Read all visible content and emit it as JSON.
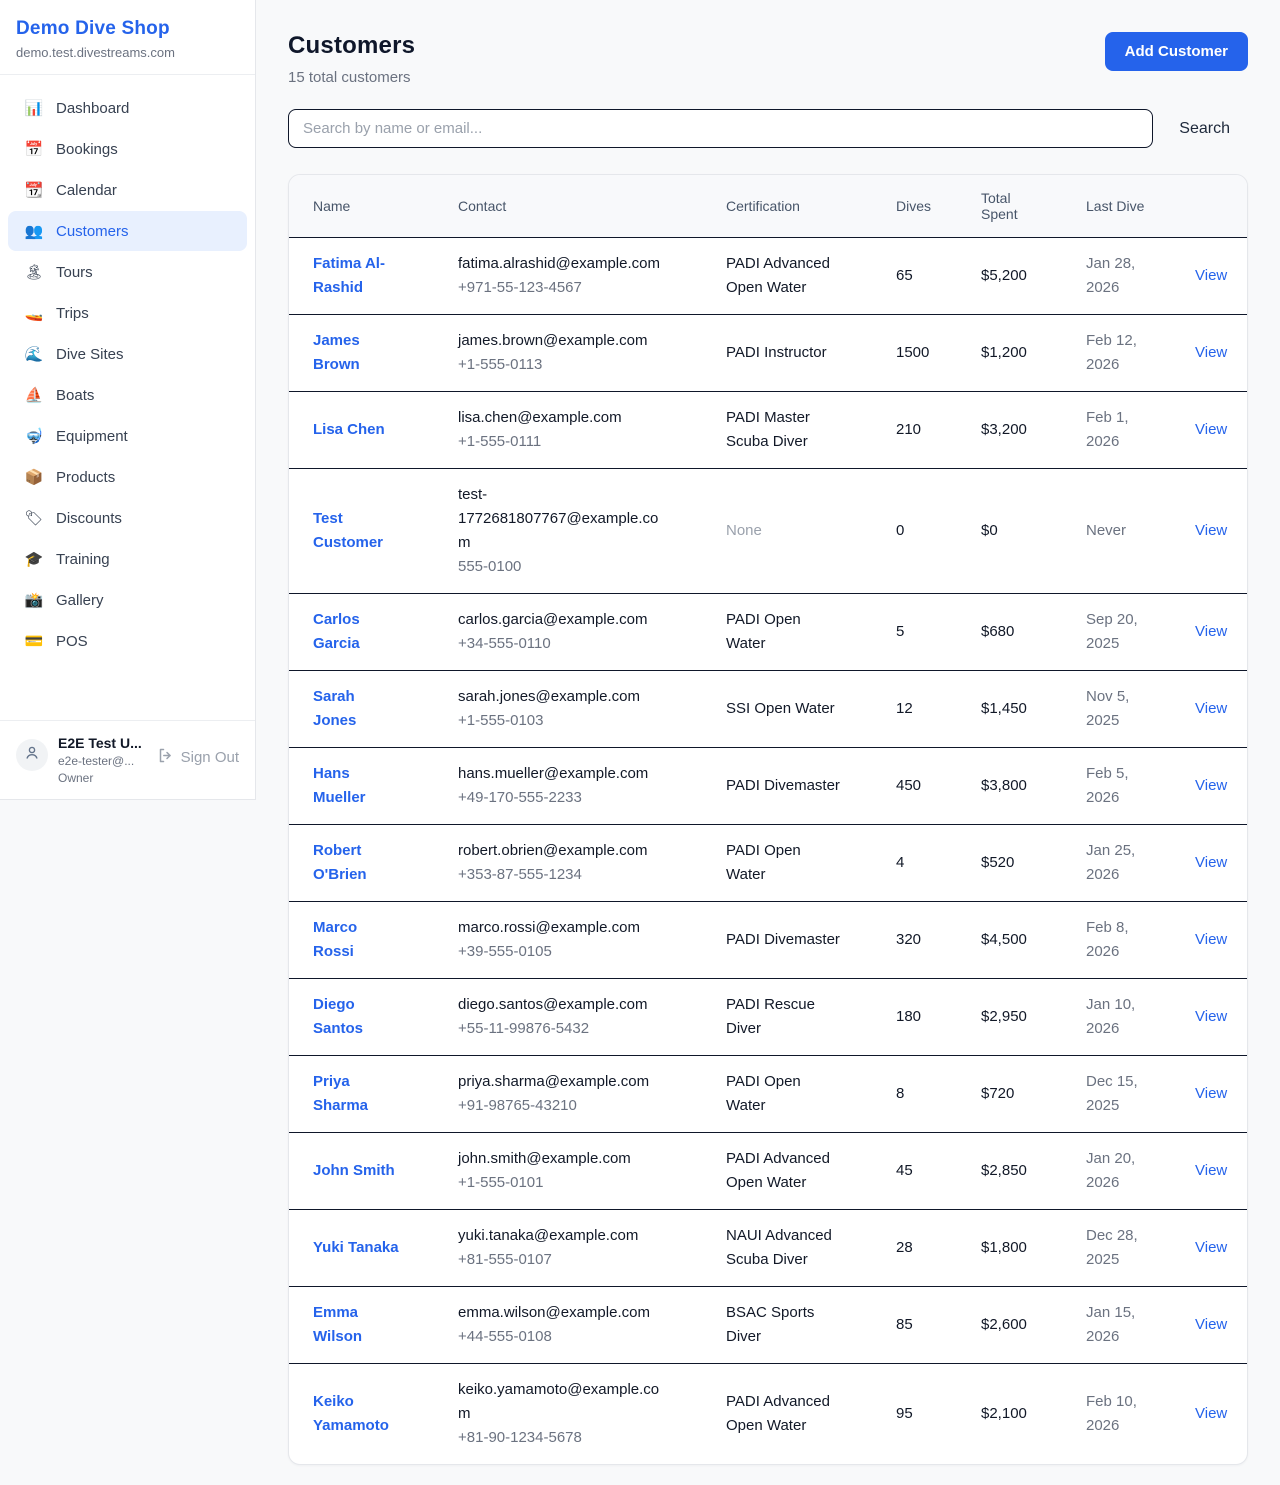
{
  "sidebar": {
    "shop_name": "Demo Dive Shop",
    "domain": "demo.test.divestreams.com",
    "nav": [
      {
        "icon": "📊",
        "icon_name": "dashboard-chart-icon",
        "label": "Dashboard",
        "active": false
      },
      {
        "icon": "📅",
        "icon_name": "bookings-calendar-icon",
        "label": "Bookings",
        "active": false
      },
      {
        "icon": "📆",
        "icon_name": "calendar-icon",
        "label": "Calendar",
        "active": false
      },
      {
        "icon": "👥",
        "icon_name": "customers-people-icon",
        "label": "Customers",
        "active": true
      },
      {
        "icon": "🏝",
        "icon_name": "tours-island-icon",
        "label": "Tours",
        "active": false
      },
      {
        "icon": "🚤",
        "icon_name": "trips-speedboat-icon",
        "label": "Trips",
        "active": false
      },
      {
        "icon": "🌊",
        "icon_name": "dive-sites-wave-icon",
        "label": "Dive Sites",
        "active": false
      },
      {
        "icon": "⛵",
        "icon_name": "boats-sailboat-icon",
        "label": "Boats",
        "active": false
      },
      {
        "icon": "🤿",
        "icon_name": "equipment-mask-icon",
        "label": "Equipment",
        "active": false
      },
      {
        "icon": "📦",
        "icon_name": "products-package-icon",
        "label": "Products",
        "active": false
      },
      {
        "icon": "🏷",
        "icon_name": "discounts-tag-icon",
        "label": "Discounts",
        "active": false
      },
      {
        "icon": "🎓",
        "icon_name": "training-grad-cap-icon",
        "label": "Training",
        "active": false
      },
      {
        "icon": "📸",
        "icon_name": "gallery-camera-icon",
        "label": "Gallery",
        "active": false
      },
      {
        "icon": "💳",
        "icon_name": "pos-credit-card-icon",
        "label": "POS",
        "active": false
      }
    ],
    "user": {
      "name": "E2E Test U...",
      "email": "e2e-tester@...",
      "role": "Owner",
      "sign_out_label": "Sign Out"
    }
  },
  "header": {
    "title": "Customers",
    "subtitle": "15 total customers",
    "add_button_label": "Add Customer"
  },
  "search": {
    "placeholder": "Search by name or email...",
    "button_label": "Search"
  },
  "table": {
    "columns": [
      "Name",
      "Contact",
      "Certification",
      "Dives",
      "Total Spent",
      "Last Dive"
    ],
    "view_label": "View",
    "rows": [
      {
        "name": "Fatima Al-Rashid",
        "email": "fatima.alrashid@example.com",
        "phone": "+971-55-123-4567",
        "certification": "PADI Advanced Open Water",
        "dives": "65",
        "total_spent": "$5,200",
        "last_dive": "Jan 28, 2026"
      },
      {
        "name": "James Brown",
        "email": "james.brown@example.com",
        "phone": "+1-555-0113",
        "certification": "PADI Instructor",
        "dives": "1500",
        "total_spent": "$1,200",
        "last_dive": "Feb 12, 2026"
      },
      {
        "name": "Lisa Chen",
        "email": "lisa.chen@example.com",
        "phone": "+1-555-0111",
        "certification": "PADI Master Scuba Diver",
        "dives": "210",
        "total_spent": "$3,200",
        "last_dive": "Feb 1, 2026"
      },
      {
        "name": "Test Customer",
        "email": "test-1772681807767@example.com",
        "phone": "555-0100",
        "certification": "None",
        "dives": "0",
        "total_spent": "$0",
        "last_dive": "Never"
      },
      {
        "name": "Carlos Garcia",
        "email": "carlos.garcia@example.com",
        "phone": "+34-555-0110",
        "certification": "PADI Open Water",
        "dives": "5",
        "total_spent": "$680",
        "last_dive": "Sep 20, 2025"
      },
      {
        "name": "Sarah Jones",
        "email": "sarah.jones@example.com",
        "phone": "+1-555-0103",
        "certification": "SSI Open Water",
        "dives": "12",
        "total_spent": "$1,450",
        "last_dive": "Nov 5, 2025"
      },
      {
        "name": "Hans Mueller",
        "email": "hans.mueller@example.com",
        "phone": "+49-170-555-2233",
        "certification": "PADI Divemaster",
        "dives": "450",
        "total_spent": "$3,800",
        "last_dive": "Feb 5, 2026"
      },
      {
        "name": "Robert O'Brien",
        "email": "robert.obrien@example.com",
        "phone": "+353-87-555-1234",
        "certification": "PADI Open Water",
        "dives": "4",
        "total_spent": "$520",
        "last_dive": "Jan 25, 2026"
      },
      {
        "name": "Marco Rossi",
        "email": "marco.rossi@example.com",
        "phone": "+39-555-0105",
        "certification": "PADI Divemaster",
        "dives": "320",
        "total_spent": "$4,500",
        "last_dive": "Feb 8, 2026"
      },
      {
        "name": "Diego Santos",
        "email": "diego.santos@example.com",
        "phone": "+55-11-99876-5432",
        "certification": "PADI Rescue Diver",
        "dives": "180",
        "total_spent": "$2,950",
        "last_dive": "Jan 10, 2026"
      },
      {
        "name": "Priya Sharma",
        "email": "priya.sharma@example.com",
        "phone": "+91-98765-43210",
        "certification": "PADI Open Water",
        "dives": "8",
        "total_spent": "$720",
        "last_dive": "Dec 15, 2025"
      },
      {
        "name": "John Smith",
        "email": "john.smith@example.com",
        "phone": "+1-555-0101",
        "certification": "PADI Advanced Open Water",
        "dives": "45",
        "total_spent": "$2,850",
        "last_dive": "Jan 20, 2026"
      },
      {
        "name": "Yuki Tanaka",
        "email": "yuki.tanaka@example.com",
        "phone": "+81-555-0107",
        "certification": "NAUI Advanced Scuba Diver",
        "dives": "28",
        "total_spent": "$1,800",
        "last_dive": "Dec 28, 2025"
      },
      {
        "name": "Emma Wilson",
        "email": "emma.wilson@example.com",
        "phone": "+44-555-0108",
        "certification": "BSAC Sports Diver",
        "dives": "85",
        "total_spent": "$2,600",
        "last_dive": "Jan 15, 2026"
      },
      {
        "name": "Keiko Yamamoto",
        "email": "keiko.yamamoto@example.com",
        "phone": "+81-90-1234-5678",
        "certification": "PADI Advanced Open Water",
        "dives": "95",
        "total_spent": "$2,100",
        "last_dive": "Feb 10, 2026"
      }
    ]
  },
  "colors": {
    "accent_blue": "#2563eb",
    "active_nav_bg": "#e8f0fe",
    "page_bg": "#f8f9fa",
    "row_border": "#0f172a",
    "muted_text": "#6b7280"
  }
}
